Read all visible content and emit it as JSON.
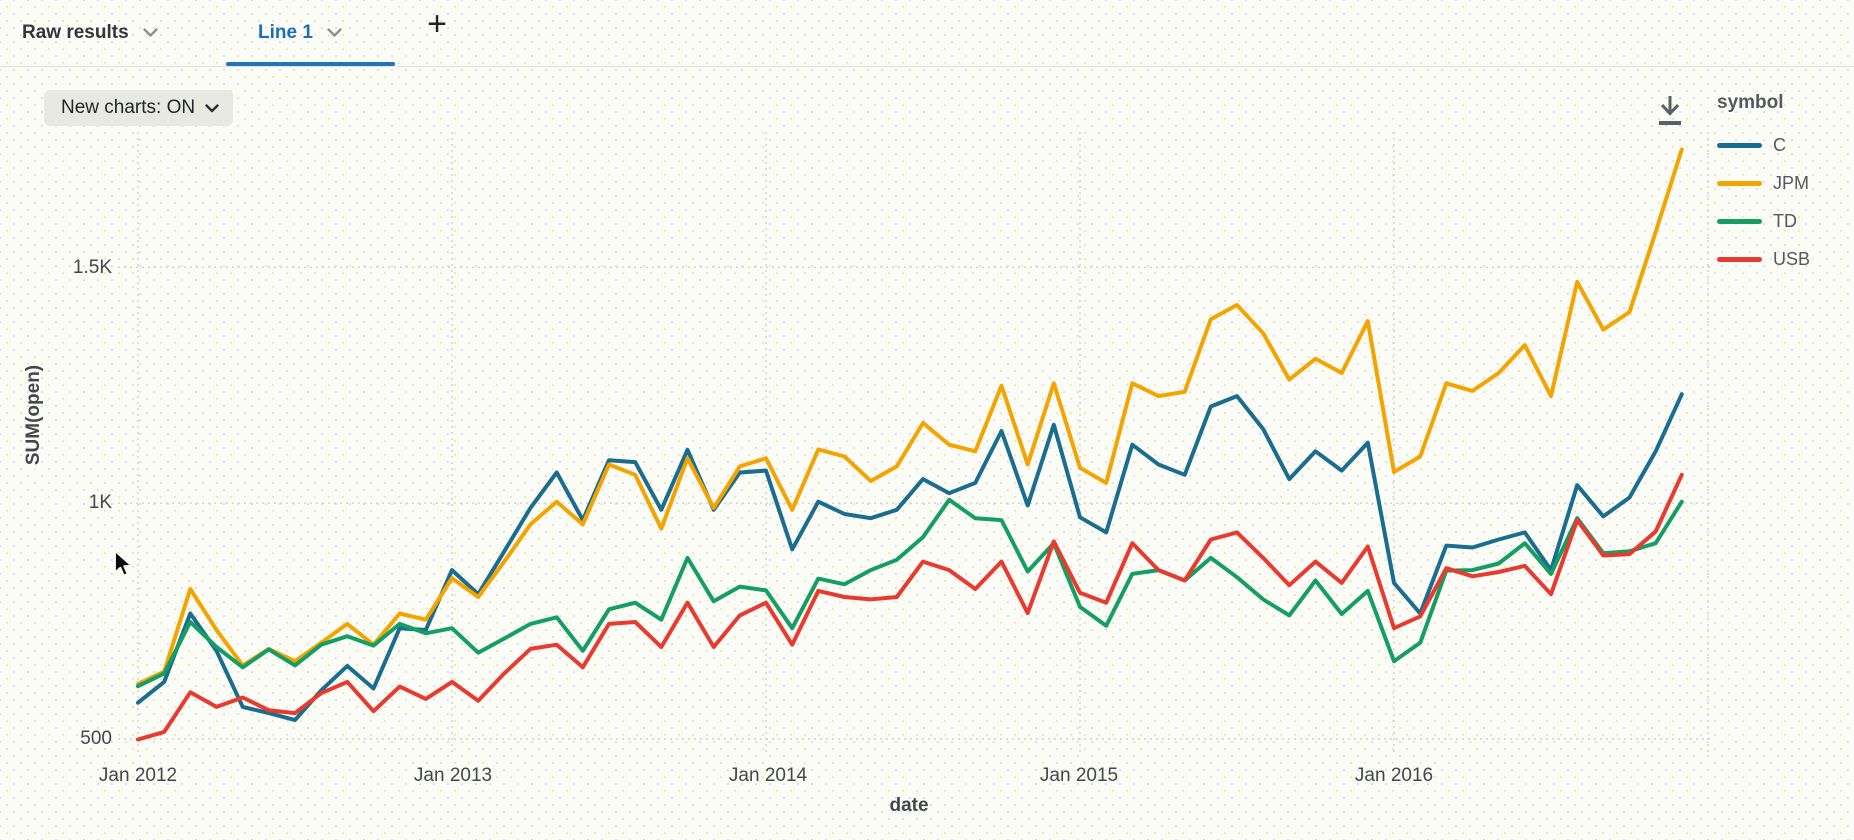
{
  "tab_bar": {
    "tabs": [
      {
        "label": "Raw results",
        "active": false
      },
      {
        "label": "Line 1",
        "active": true
      }
    ],
    "add_tab_label": "+"
  },
  "controls": {
    "new_charts_toggle": "New charts: ON"
  },
  "colors": {
    "accent_blue": "#1f73c1",
    "grid": "#d2d2c8",
    "axis_text": "#43464c"
  },
  "chart_data": {
    "type": "line",
    "title": "",
    "xlabel": "date",
    "ylabel": "SUM(open)",
    "legend_title": "symbol",
    "legend_position": "top-right",
    "grid": "dotted",
    "x_tick_labels": [
      "Jan 2012",
      "Jan 2013",
      "Jan 2014",
      "Jan 2015",
      "Jan 2016"
    ],
    "y_ticks": [
      {
        "value": 500,
        "label": "500"
      },
      {
        "value": 1000,
        "label": "1K"
      },
      {
        "value": 1500,
        "label": "1.5K"
      }
    ],
    "y_axis_range": [
      450,
      1800
    ],
    "x": [
      "Jan 2012",
      "Feb 2012",
      "Mar 2012",
      "Apr 2012",
      "May 2012",
      "Jun 2012",
      "Jul 2012",
      "Aug 2012",
      "Sep 2012",
      "Oct 2012",
      "Nov 2012",
      "Dec 2012",
      "Jan 2013",
      "Feb 2013",
      "Mar 2013",
      "Apr 2013",
      "May 2013",
      "Jun 2013",
      "Jul 2013",
      "Aug 2013",
      "Sep 2013",
      "Oct 2013",
      "Nov 2013",
      "Dec 2013",
      "Jan 2014",
      "Feb 2014",
      "Mar 2014",
      "Apr 2014",
      "May 2014",
      "Jun 2014",
      "Jul 2014",
      "Aug 2014",
      "Sep 2014",
      "Oct 2014",
      "Nov 2014",
      "Dec 2014",
      "Jan 2015",
      "Feb 2015",
      "Mar 2015",
      "Apr 2015",
      "May 2015",
      "Jun 2015",
      "Jul 2015",
      "Aug 2015",
      "Sep 2015",
      "Oct 2015",
      "Nov 2015",
      "Dec 2015",
      "Jan 2016",
      "Feb 2016",
      "Mar 2016",
      "Apr 2016",
      "May 2016",
      "Jun 2016",
      "Jul 2016",
      "Aug 2016",
      "Sep 2016",
      "Oct 2016",
      "Nov 2016",
      "Dec 2016"
    ],
    "series": [
      {
        "name": "C",
        "color": "#1a6d8e",
        "values": [
          577,
          621,
          766,
          687,
          568,
          555,
          540,
          603,
          655,
          607,
          735,
          731,
          858,
          807,
          898,
          990,
          1065,
          964,
          1091,
          1087,
          986,
          1113,
          986,
          1065,
          1069,
          902,
          1003,
          977,
          968,
          986,
          1051,
          1021,
          1043,
          1153,
          995,
          1166,
          970,
          938,
          1124,
          1082,
          1060,
          1205,
          1227,
          1157,
          1051,
          1110,
          1069,
          1128,
          831,
          766,
          910,
          906,
          923,
          938,
          858,
          1038,
          972,
          1012,
          1110,
          1231
        ]
      },
      {
        "name": "JPM",
        "color": "#f4a400",
        "values": [
          617,
          643,
          818,
          731,
          656,
          691,
          665,
          704,
          744,
          700,
          766,
          753,
          841,
          801,
          876,
          955,
          1003,
          955,
          1082,
          1060,
          946,
          1095,
          990,
          1078,
          1095,
          986,
          1114,
          1099,
          1047,
          1078,
          1170,
          1124,
          1110,
          1249,
          1082,
          1254,
          1075,
          1043,
          1254,
          1227,
          1236,
          1390,
          1420,
          1360,
          1262,
          1306,
          1276,
          1386,
          1066,
          1099,
          1254,
          1238,
          1276,
          1335,
          1227,
          1469,
          1368,
          1405,
          1575,
          1750
        ]
      },
      {
        "name": "TD",
        "color": "#149e63",
        "values": [
          612,
          639,
          748,
          695,
          652,
          690,
          656,
          700,
          718,
          698,
          744,
          724,
          735,
          683,
          713,
          744,
          758,
          687,
          775,
          789,
          753,
          884,
          792,
          823,
          815,
          735,
          840,
          828,
          858,
          880,
          928,
          1007,
          968,
          964,
          855,
          915,
          780,
          740,
          850,
          858,
          836,
          884,
          843,
          796,
          762,
          836,
          765,
          814,
          665,
          704,
          857,
          858,
          872,
          915,
          850,
          968,
          894,
          898,
          915,
          1003
        ]
      },
      {
        "name": "USB",
        "color": "#e83a2e",
        "values": [
          499,
          515,
          599,
          568,
          588,
          561,
          555,
          597,
          621,
          559,
          611,
          585,
          621,
          581,
          639,
          691,
          700,
          652,
          744,
          748,
          695,
          789,
          695,
          762,
          789,
          700,
          814,
          801,
          796,
          801,
          876,
          858,
          818,
          876,
          767,
          919,
          810,
          789,
          915,
          858,
          836,
          923,
          938,
          884,
          826,
          876,
          831,
          908,
          735,
          760,
          862,
          845,
          854,
          867,
          807,
          964,
          889,
          892,
          940,
          1060
        ]
      }
    ]
  }
}
